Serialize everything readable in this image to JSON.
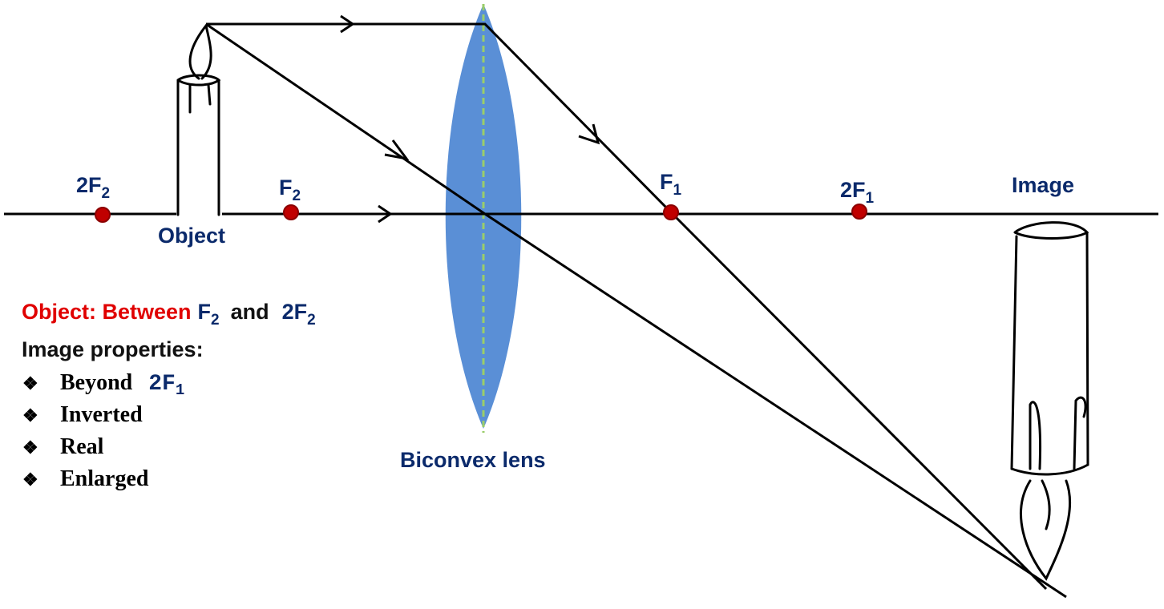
{
  "points": [
    {
      "label": "2F",
      "sub": "2"
    },
    {
      "label": "F",
      "sub": "2"
    },
    {
      "label": "F",
      "sub": "1"
    },
    {
      "label": "2F",
      "sub": "1"
    }
  ],
  "labels": {
    "object": "Object",
    "image": "Image",
    "lens": "Biconvex lens"
  },
  "caption": {
    "lead": "Object: Between",
    "f": "F",
    "f_sub": "2",
    "and": "and",
    "twof": "2F",
    "twof_sub": "2"
  },
  "properties": {
    "title": "Image properties:",
    "bullet": "❖",
    "items": [
      {
        "text": "Beyond",
        "extra": "2F",
        "extra_sub": "1"
      },
      {
        "text": "Inverted"
      },
      {
        "text": "Real"
      },
      {
        "text": "Enlarged"
      }
    ]
  }
}
